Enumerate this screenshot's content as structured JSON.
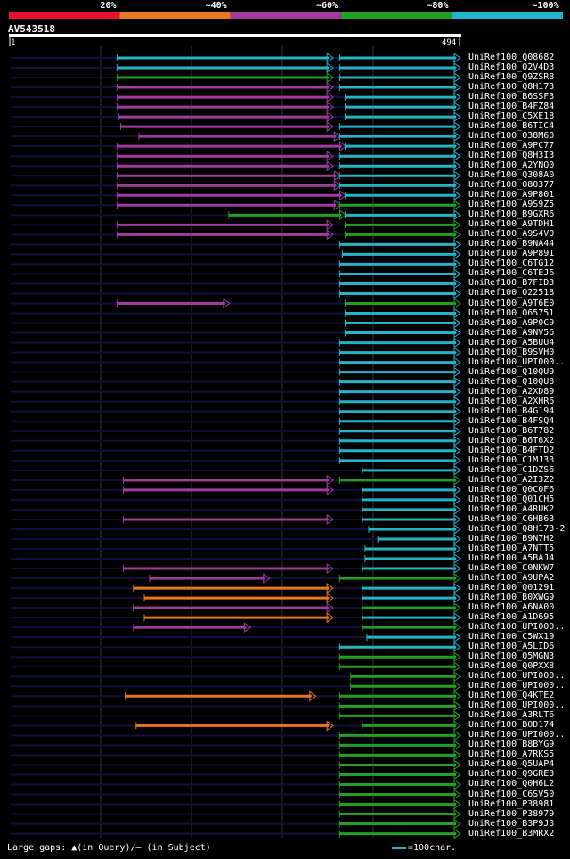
{
  "chart_data": {
    "type": "alignment-overview",
    "query_name": "AV543518",
    "query_length": 494,
    "axis_start_label": "1",
    "axis_end_label": "494",
    "scale_labels": [
      "20%",
      "~40%",
      "~60%",
      "~80%",
      "~100%"
    ],
    "colors": {
      "band1": "#e8112d",
      "band2": "#e87722",
      "band3": "#a03ca0",
      "band4": "#22a022",
      "band5": "#22b4c8",
      "backbone": "#101040",
      "gap_marker": "#ffff80"
    },
    "hits": [
      {
        "name": "UniRef100_Q08682",
        "segs": [
          [
            117,
            354,
            "c"
          ],
          [
            362,
            494,
            "c"
          ]
        ]
      },
      {
        "name": "UniRef100_Q2V4D3",
        "segs": [
          [
            117,
            354,
            "c"
          ],
          [
            362,
            494,
            "c"
          ]
        ]
      },
      {
        "name": "UniRef100_Q9ZSR8",
        "segs": [
          [
            117,
            354,
            "g"
          ],
          [
            362,
            494,
            "c"
          ]
        ]
      },
      {
        "name": "UniRef100_Q8H173",
        "segs": [
          [
            117,
            354,
            "p"
          ],
          [
            362,
            494,
            "c"
          ]
        ]
      },
      {
        "name": "UniRef100_B6SSF3",
        "segs": [
          [
            117,
            354,
            "p"
          ],
          [
            368,
            494,
            "c"
          ]
        ]
      },
      {
        "name": "UniRef100_B4FZ84",
        "segs": [
          [
            117,
            354,
            "p"
          ],
          [
            368,
            494,
            "c"
          ]
        ]
      },
      {
        "name": "UniRef100_C5XE18",
        "segs": [
          [
            119,
            354,
            "p"
          ],
          [
            368,
            494,
            "c"
          ]
        ]
      },
      {
        "name": "UniRef100_B6TIC4",
        "segs": [
          [
            121,
            354,
            "p"
          ],
          [
            362,
            494,
            "c"
          ]
        ]
      },
      {
        "name": "UniRef100_O38M60",
        "segs": [
          [
            141,
            362,
            "p"
          ],
          [
            362,
            494,
            "c"
          ]
        ]
      },
      {
        "name": "UniRef100_A9PC77",
        "segs": [
          [
            117,
            368,
            "p"
          ],
          [
            368,
            494,
            "c"
          ]
        ]
      },
      {
        "name": "UniRef100_Q8H3I3",
        "segs": [
          [
            117,
            354,
            "p"
          ],
          [
            362,
            494,
            "c"
          ]
        ]
      },
      {
        "name": "UniRef100_A2YNQ0",
        "segs": [
          [
            117,
            354,
            "p"
          ],
          [
            362,
            494,
            "c"
          ]
        ]
      },
      {
        "name": "UniRef100_Q308A0",
        "segs": [
          [
            117,
            362,
            "p"
          ],
          [
            362,
            494,
            "c"
          ]
        ]
      },
      {
        "name": "UniRef100_O80377",
        "segs": [
          [
            117,
            362,
            "p"
          ],
          [
            362,
            494,
            "c"
          ]
        ]
      },
      {
        "name": "UniRef100_A9P801",
        "segs": [
          [
            117,
            368,
            "p"
          ],
          [
            368,
            494,
            "c"
          ]
        ]
      },
      {
        "name": "UniRef100_A9S9Z5",
        "segs": [
          [
            117,
            362,
            "p"
          ],
          [
            362,
            494,
            "g"
          ]
        ]
      },
      {
        "name": "UniRef100_B9GXR6",
        "segs": [
          [
            240,
            368,
            "g"
          ],
          [
            368,
            494,
            "c"
          ]
        ]
      },
      {
        "name": "UniRef100_A9TDH1",
        "segs": [
          [
            117,
            354,
            "p"
          ],
          [
            368,
            494,
            "g"
          ]
        ]
      },
      {
        "name": "UniRef100_A9S4V0",
        "segs": [
          [
            117,
            354,
            "p"
          ],
          [
            368,
            494,
            "g"
          ]
        ]
      },
      {
        "name": "UniRef100_B9NA44",
        "segs": [
          [
            362,
            494,
            "c"
          ]
        ]
      },
      {
        "name": "UniRef100_A9P891",
        "segs": [
          [
            365,
            494,
            "c"
          ]
        ]
      },
      {
        "name": "UniRef100_C6TG12",
        "segs": [
          [
            362,
            494,
            "c"
          ]
        ]
      },
      {
        "name": "UniRef100_C6TEJ6",
        "segs": [
          [
            362,
            494,
            "c"
          ]
        ]
      },
      {
        "name": "UniRef100_B7FID3",
        "segs": [
          [
            362,
            494,
            "c"
          ]
        ]
      },
      {
        "name": "UniRef100_O22518",
        "segs": [
          [
            362,
            494,
            "c"
          ]
        ]
      },
      {
        "name": "UniRef100_A9T6E0",
        "segs": [
          [
            117,
            240,
            "p"
          ],
          [
            368,
            494,
            "g"
          ]
        ]
      },
      {
        "name": "UniRef100_O65751",
        "segs": [
          [
            368,
            494,
            "c"
          ]
        ]
      },
      {
        "name": "UniRef100_A9P0C9",
        "segs": [
          [
            368,
            494,
            "c"
          ]
        ]
      },
      {
        "name": "UniRef100_A9NV56",
        "segs": [
          [
            368,
            494,
            "c"
          ]
        ]
      },
      {
        "name": "UniRef100_A5BUU4",
        "segs": [
          [
            362,
            494,
            "c"
          ]
        ]
      },
      {
        "name": "UniRef100_B9SVH0",
        "segs": [
          [
            362,
            494,
            "c"
          ]
        ]
      },
      {
        "name": "UniRef100_UPI000..",
        "segs": [
          [
            362,
            494,
            "c"
          ]
        ]
      },
      {
        "name": "UniRef100_Q10QU9",
        "segs": [
          [
            362,
            494,
            "c"
          ]
        ]
      },
      {
        "name": "UniRef100_Q10QU8",
        "segs": [
          [
            362,
            494,
            "c"
          ]
        ]
      },
      {
        "name": "UniRef100_A2XD89",
        "segs": [
          [
            362,
            494,
            "c"
          ]
        ]
      },
      {
        "name": "UniRef100_A2XHR6",
        "segs": [
          [
            362,
            494,
            "c"
          ]
        ]
      },
      {
        "name": "UniRef100_B4G194",
        "segs": [
          [
            362,
            494,
            "c"
          ]
        ]
      },
      {
        "name": "UniRef100_B4FSQ4",
        "segs": [
          [
            362,
            494,
            "c"
          ]
        ]
      },
      {
        "name": "UniRef100_B6T782",
        "segs": [
          [
            362,
            494,
            "c"
          ]
        ]
      },
      {
        "name": "UniRef100_B6T6X2",
        "segs": [
          [
            362,
            494,
            "c"
          ]
        ]
      },
      {
        "name": "UniRef100_B4FTD2",
        "segs": [
          [
            362,
            494,
            "c"
          ]
        ]
      },
      {
        "name": "UniRef100_C1MJ33",
        "segs": [
          [
            362,
            494,
            "c"
          ]
        ]
      },
      {
        "name": "UniRef100_C1DZS6",
        "segs": [
          [
            387,
            494,
            "c"
          ]
        ]
      },
      {
        "name": "UniRef100_A2I3Z2",
        "segs": [
          [
            124,
            354,
            "p"
          ],
          [
            362,
            494,
            "g"
          ]
        ]
      },
      {
        "name": "UniRef100_Q0C0F6",
        "segs": [
          [
            124,
            354,
            "p"
          ],
          [
            387,
            494,
            "c"
          ]
        ]
      },
      {
        "name": "UniRef100_Q01CH5",
        "segs": [
          [
            387,
            494,
            "c"
          ]
        ]
      },
      {
        "name": "UniRef100_A4RUK2",
        "segs": [
          [
            387,
            494,
            "c"
          ]
        ]
      },
      {
        "name": "UniRef100_C6HB63",
        "segs": [
          [
            124,
            354,
            "p"
          ],
          [
            387,
            494,
            "c"
          ]
        ]
      },
      {
        "name": "UniRef100_Q8H173-2",
        "segs": [
          [
            394,
            494,
            "c"
          ]
        ]
      },
      {
        "name": "UniRef100_B9N7H2",
        "segs": [
          [
            404,
            494,
            "c"
          ]
        ]
      },
      {
        "name": "UniRef100_A7NTT5",
        "segs": [
          [
            390,
            494,
            "c"
          ]
        ]
      },
      {
        "name": "UniRef100_A5BAJ4",
        "segs": [
          [
            390,
            494,
            "c"
          ]
        ]
      },
      {
        "name": "UniRef100_C0NKW7",
        "segs": [
          [
            124,
            354,
            "p"
          ],
          [
            387,
            494,
            "c"
          ]
        ]
      },
      {
        "name": "UniRef100_A9UPA2",
        "segs": [
          [
            153,
            284,
            "p"
          ],
          [
            362,
            494,
            "g"
          ]
        ]
      },
      {
        "name": "UniRef100_Q01291",
        "segs": [
          [
            135,
            354,
            "o"
          ],
          [
            387,
            494,
            "c"
          ]
        ]
      },
      {
        "name": "UniRef100_B0XWG9",
        "segs": [
          [
            147,
            354,
            "o"
          ],
          [
            387,
            494,
            "c"
          ]
        ]
      },
      {
        "name": "UniRef100_A6NA00",
        "segs": [
          [
            135,
            354,
            "p"
          ],
          [
            387,
            494,
            "g"
          ]
        ]
      },
      {
        "name": "UniRef100_A1D695",
        "segs": [
          [
            147,
            354,
            "o"
          ],
          [
            387,
            494,
            "c"
          ]
        ]
      },
      {
        "name": "UniRef100_UPI000..",
        "segs": [
          [
            135,
            263,
            "p"
          ],
          [
            387,
            494,
            "g"
          ]
        ]
      },
      {
        "name": "UniRef100_C5WX19",
        "segs": [
          [
            392,
            494,
            "c"
          ]
        ]
      },
      {
        "name": "UniRef100_A5LID6",
        "segs": [
          [
            362,
            494,
            "c"
          ]
        ]
      },
      {
        "name": "UniRef100_Q5MGN3",
        "segs": [
          [
            362,
            494,
            "g"
          ]
        ]
      },
      {
        "name": "UniRef100_Q0PXX8",
        "segs": [
          [
            362,
            494,
            "g"
          ]
        ]
      },
      {
        "name": "UniRef100_UPI000..",
        "segs": [
          [
            374,
            494,
            "g"
          ]
        ]
      },
      {
        "name": "UniRef100_UPI000..",
        "segs": [
          [
            374,
            494,
            "g"
          ]
        ]
      },
      {
        "name": "UniRef100_Q4KTE2",
        "segs": [
          [
            126,
            335,
            "o"
          ],
          [
            362,
            494,
            "g"
          ]
        ]
      },
      {
        "name": "UniRef100_UPI000..",
        "segs": [
          [
            362,
            494,
            "g"
          ]
        ]
      },
      {
        "name": "UniRef100_A3RLT6",
        "segs": [
          [
            362,
            494,
            "g"
          ]
        ]
      },
      {
        "name": "UniRef100_B0D174",
        "segs": [
          [
            138,
            354,
            "o"
          ],
          [
            387,
            494,
            "g"
          ]
        ]
      },
      {
        "name": "UniRef100_UPI000..",
        "segs": [
          [
            362,
            494,
            "g"
          ]
        ]
      },
      {
        "name": "UniRef100_B8BYG9",
        "segs": [
          [
            362,
            494,
            "g"
          ]
        ]
      },
      {
        "name": "UniRef100_A7RKS5",
        "segs": [
          [
            362,
            494,
            "g"
          ]
        ]
      },
      {
        "name": "UniRef100_Q5UAP4",
        "segs": [
          [
            362,
            494,
            "g"
          ]
        ]
      },
      {
        "name": "UniRef100_Q9GRE3",
        "segs": [
          [
            362,
            494,
            "g"
          ]
        ]
      },
      {
        "name": "UniRef100_Q0H6L2",
        "segs": [
          [
            362,
            494,
            "g"
          ]
        ]
      },
      {
        "name": "UniRef100_C6SV50",
        "segs": [
          [
            362,
            494,
            "g"
          ]
        ]
      },
      {
        "name": "UniRef100_P38981",
        "segs": [
          [
            362,
            494,
            "g"
          ]
        ]
      },
      {
        "name": "UniRef100_P38979",
        "segs": [
          [
            362,
            494,
            "g"
          ]
        ]
      },
      {
        "name": "UniRef100_B3P9J3",
        "segs": [
          [
            362,
            494,
            "g"
          ]
        ]
      },
      {
        "name": "UniRef100_B3MRX2",
        "segs": [
          [
            362,
            494,
            "g"
          ]
        ]
      }
    ]
  },
  "footer": {
    "gaps_text": "Large gaps: ▲(in Query)/– (in Subject)",
    "legend_text": "=100char."
  }
}
